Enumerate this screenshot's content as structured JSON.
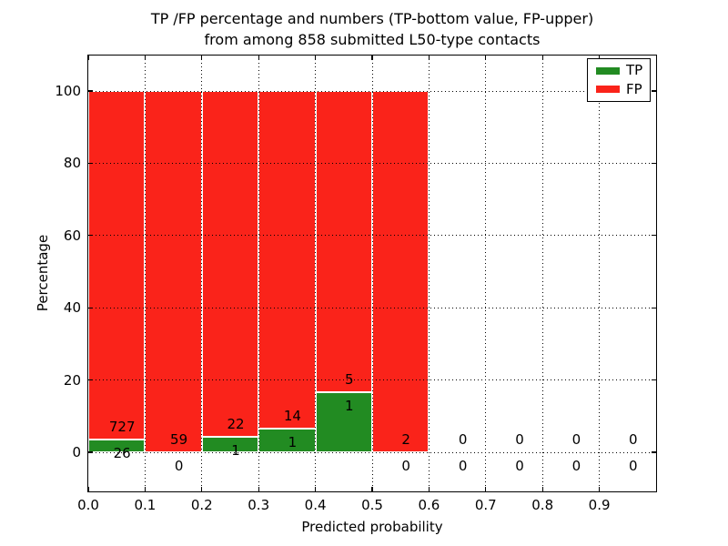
{
  "chart_data": {
    "type": "bar",
    "stacked": true,
    "title": "TP /FP percentage and numbers (TP-bottom value, FP-upper)",
    "subtitle": "from among 858 submitted L50-type contacts",
    "xlabel": "Predicted probability",
    "ylabel": "Percentage",
    "total_submitted": 858,
    "bar_unit": "percent of bin total (TP+FP stacked to 100%)",
    "x_ticks": [
      "0.0",
      "0.1",
      "0.2",
      "0.3",
      "0.4",
      "0.5",
      "0.6",
      "0.7",
      "0.8",
      "0.9"
    ],
    "y_ticks": [
      0,
      20,
      40,
      60,
      80,
      100
    ],
    "xlim": [
      0.0,
      1.0
    ],
    "ylim": [
      -11,
      110
    ],
    "grid": true,
    "legend_position": "upper right",
    "legend": [
      "TP",
      "FP"
    ],
    "series_colors": {
      "TP": "#228b22",
      "FP": "#fa231a"
    },
    "bins": [
      {
        "x0": 0.0,
        "x1": 0.1,
        "tp": 26,
        "fp": 727
      },
      {
        "x0": 0.1,
        "x1": 0.2,
        "tp": 0,
        "fp": 59
      },
      {
        "x0": 0.2,
        "x1": 0.3,
        "tp": 1,
        "fp": 22
      },
      {
        "x0": 0.3,
        "x1": 0.4,
        "tp": 1,
        "fp": 14
      },
      {
        "x0": 0.4,
        "x1": 0.5,
        "tp": 1,
        "fp": 5
      },
      {
        "x0": 0.5,
        "x1": 0.6,
        "tp": 0,
        "fp": 2
      },
      {
        "x0": 0.6,
        "x1": 0.7,
        "tp": 0,
        "fp": 0
      },
      {
        "x0": 0.7,
        "x1": 0.8,
        "tp": 0,
        "fp": 0
      },
      {
        "x0": 0.8,
        "x1": 0.9,
        "tp": 0,
        "fp": 0
      },
      {
        "x0": 0.9,
        "x1": 1.0,
        "tp": 0,
        "fp": 0
      }
    ]
  },
  "colors": {
    "background": "#ffffff",
    "axis": "#000000",
    "grid": "#000000"
  }
}
